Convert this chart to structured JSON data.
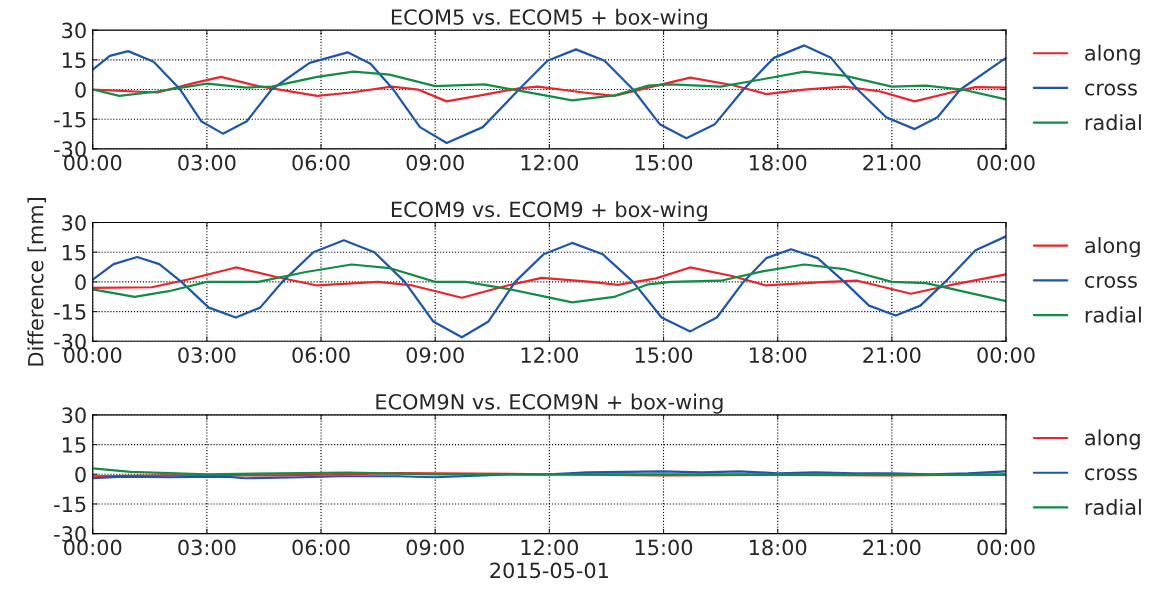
{
  "chart_data": [
    {
      "type": "line",
      "title": "ECOM5 vs. ECOM5 + box-wing",
      "xlim": [
        0,
        24
      ],
      "ylim": [
        -30,
        30
      ],
      "yticks": [
        -30,
        -15,
        0,
        15,
        30
      ],
      "grid": true,
      "legend": "right",
      "line_style": "solid",
      "xticks": [
        {
          "value": 0,
          "label": "00:00"
        },
        {
          "value": 3,
          "label": "03:00"
        },
        {
          "value": 6,
          "label": "06:00"
        },
        {
          "value": 9,
          "label": "09:00"
        },
        {
          "value": 12,
          "label": "12:00"
        },
        {
          "value": 15,
          "label": "15:00"
        },
        {
          "value": 18,
          "label": "18:00"
        },
        {
          "value": 21,
          "label": "21:00"
        },
        {
          "value": 24,
          "label": "00:00"
        }
      ],
      "series": [
        {
          "name": "along",
          "color": "#e8262b",
          "x": [
            0,
            1.1,
            1.7,
            2.6,
            3.37,
            4.35,
            5.9,
            6.8,
            7.85,
            8.55,
            9.3,
            10.3,
            11.2,
            11.7,
            12.9,
            13.7,
            14.6,
            15.7,
            16.8,
            17.7,
            18.7,
            19.75,
            20.7,
            21.6,
            22.55,
            23.2,
            24
          ],
          "values": [
            0,
            -1,
            -1.5,
            3,
            6.4,
            1.7,
            -3.2,
            -1.5,
            1.5,
            0,
            -6,
            -2.6,
            0.6,
            1.5,
            -1.5,
            -3.2,
            1,
            6,
            2.3,
            -2.3,
            0,
            1.5,
            -1,
            -6,
            -1.5,
            1.2,
            1
          ]
        },
        {
          "name": "cross",
          "color": "#1f57a8",
          "x": [
            0,
            0.45,
            0.93,
            1.6,
            2.3,
            2.85,
            3.42,
            4.05,
            4.7,
            5.7,
            6.7,
            7.3,
            7.9,
            8.6,
            9.3,
            10.25,
            11.2,
            11.95,
            12.7,
            13.45,
            14.2,
            14.9,
            15.6,
            16.35,
            17.1,
            17.9,
            18.7,
            19.4,
            20.1,
            20.85,
            21.6,
            22.2,
            22.8,
            24
          ],
          "values": [
            10,
            17,
            19.4,
            14,
            0,
            -16,
            -22.3,
            -16,
            0,
            13.5,
            18.8,
            13,
            0,
            -19,
            -27,
            -19,
            0,
            14.5,
            20.3,
            14.5,
            0,
            -17.5,
            -24.6,
            -17.5,
            0,
            16,
            22.3,
            16,
            0,
            -14,
            -20,
            -14,
            0,
            16
          ]
        },
        {
          "name": "radial",
          "color": "#138c48",
          "x": [
            0,
            0.7,
            1.7,
            3.0,
            4.05,
            4.7,
            5.9,
            6.85,
            7.8,
            9.0,
            10.3,
            11.2,
            12.6,
            13.7,
            14.6,
            15.2,
            16.5,
            17.6,
            18.7,
            19.75,
            21.0,
            21.9,
            22.85,
            24
          ],
          "values": [
            0,
            -3.2,
            -1,
            3,
            1,
            1.5,
            6.4,
            9,
            7.5,
            1.7,
            2.6,
            -0.6,
            -5.5,
            -3,
            2,
            2.6,
            1.5,
            5.2,
            9,
            7,
            1.5,
            2,
            0,
            -5
          ]
        }
      ]
    },
    {
      "type": "line",
      "title": "ECOM9 vs. ECOM9 + box-wing",
      "ylabel": "Difference [mm]",
      "xlim": [
        0,
        24
      ],
      "ylim": [
        -30,
        30
      ],
      "yticks": [
        -30,
        -15,
        0,
        15,
        30
      ],
      "grid": true,
      "legend": "right",
      "line_style": "solid",
      "xticks": [
        {
          "value": 0,
          "label": "00:00"
        },
        {
          "value": 3,
          "label": "03:00"
        },
        {
          "value": 6,
          "label": "06:00"
        },
        {
          "value": 9,
          "label": "09:00"
        },
        {
          "value": 12,
          "label": "12:00"
        },
        {
          "value": 15,
          "label": "15:00"
        },
        {
          "value": 18,
          "label": "18:00"
        },
        {
          "value": 21,
          "label": "21:00"
        },
        {
          "value": 24,
          "label": "00:00"
        }
      ],
      "series": [
        {
          "name": "along",
          "color": "#e8262b",
          "x": [
            0,
            1.55,
            2.5,
            3.76,
            4.8,
            5.9,
            7.5,
            8.4,
            9.7,
            10.9,
            11.8,
            13.1,
            13.8,
            14.8,
            15.7,
            16.8,
            17.7,
            19.3,
            20.1,
            21.5,
            22.5,
            24
          ],
          "values": [
            -3,
            -2.7,
            1.2,
            7.3,
            2.6,
            -1.8,
            0,
            -1.8,
            -8,
            -1.8,
            2,
            0,
            -1.5,
            1.8,
            7.3,
            3,
            -1.8,
            0,
            0.6,
            -6,
            -1.8,
            3.8
          ]
        },
        {
          "name": "cross",
          "color": "#1f57a8",
          "x": [
            0,
            0.55,
            1.17,
            1.75,
            2.33,
            3.05,
            3.76,
            4.4,
            4.98,
            5.8,
            6.6,
            7.4,
            8.2,
            8.95,
            9.7,
            10.4,
            11.1,
            11.85,
            12.6,
            13.4,
            14.2,
            14.95,
            15.7,
            16.4,
            17.1,
            17.7,
            18.35,
            19.05,
            19.75,
            20.4,
            21.1,
            21.75,
            22.4,
            23.2,
            24
          ],
          "values": [
            1.2,
            9,
            12.6,
            9,
            0,
            -13,
            -18,
            -13,
            0,
            15,
            21,
            15,
            0,
            -20,
            -28,
            -20,
            0,
            14,
            19.7,
            14,
            0,
            -18,
            -25,
            -18,
            0,
            12,
            16.5,
            12,
            0,
            -12,
            -17,
            -12,
            0,
            16,
            23
          ]
        },
        {
          "name": "radial",
          "color": "#138c48",
          "x": [
            0,
            1.1,
            2.0,
            3.0,
            4.35,
            5.6,
            6.8,
            7.8,
            9.0,
            9.8,
            10.9,
            12.6,
            13.7,
            14.6,
            15.2,
            16.5,
            17.6,
            18.7,
            19.75,
            21.0,
            21.9,
            24
          ],
          "values": [
            -3.8,
            -7.6,
            -4.7,
            0,
            0,
            5,
            8.8,
            7,
            0,
            0,
            -3.5,
            -10.3,
            -7.6,
            -1.2,
            0,
            0.6,
            5.3,
            8.8,
            6.5,
            0,
            -0.6,
            -9.7
          ]
        }
      ]
    },
    {
      "type": "line",
      "title": "ECOM9N vs. ECOM9N + box-wing",
      "xlabel": "2015-05-01",
      "xlim": [
        0,
        24
      ],
      "ylim": [
        -30,
        30
      ],
      "yticks": [
        -30,
        -15,
        0,
        15,
        30
      ],
      "grid": true,
      "legend": "right",
      "line_style": "solid",
      "xticks": [
        {
          "value": 0,
          "label": "00:00"
        },
        {
          "value": 3,
          "label": "03:00"
        },
        {
          "value": 6,
          "label": "06:00"
        },
        {
          "value": 9,
          "label": "09:00"
        },
        {
          "value": 12,
          "label": "12:00"
        },
        {
          "value": 15,
          "label": "15:00"
        },
        {
          "value": 18,
          "label": "18:00"
        },
        {
          "value": 21,
          "label": "21:00"
        },
        {
          "value": 24,
          "label": "00:00"
        }
      ],
      "series": [
        {
          "name": "along",
          "color": "#e8262b",
          "x": [
            0,
            2,
            5,
            8,
            12,
            15,
            18,
            21,
            24
          ],
          "values": [
            -1,
            -0.5,
            -0.5,
            0.6,
            0,
            -0.5,
            -0.3,
            -0.6,
            0
          ]
        },
        {
          "name": "cross",
          "color": "#1f57a8",
          "x": [
            0,
            0.8,
            2,
            3.5,
            4,
            5.5,
            6.5,
            8,
            9,
            11,
            12,
            13,
            15,
            16,
            17,
            18,
            19,
            20,
            21,
            22,
            23,
            24
          ],
          "values": [
            -2,
            -1.2,
            -1.5,
            -1.2,
            -2,
            -1.5,
            -1,
            -1,
            -1.5,
            0,
            0,
            1,
            1.5,
            1,
            1.5,
            0.5,
            1,
            0.5,
            0.5,
            0,
            0.5,
            1.5
          ]
        },
        {
          "name": "radial",
          "color": "#138c48",
          "x": [
            0,
            1,
            3,
            6.7,
            9,
            12,
            15,
            18,
            24
          ],
          "values": [
            3,
            1.2,
            0,
            0.9,
            0,
            0,
            0,
            0,
            -0.3
          ]
        }
      ]
    }
  ]
}
